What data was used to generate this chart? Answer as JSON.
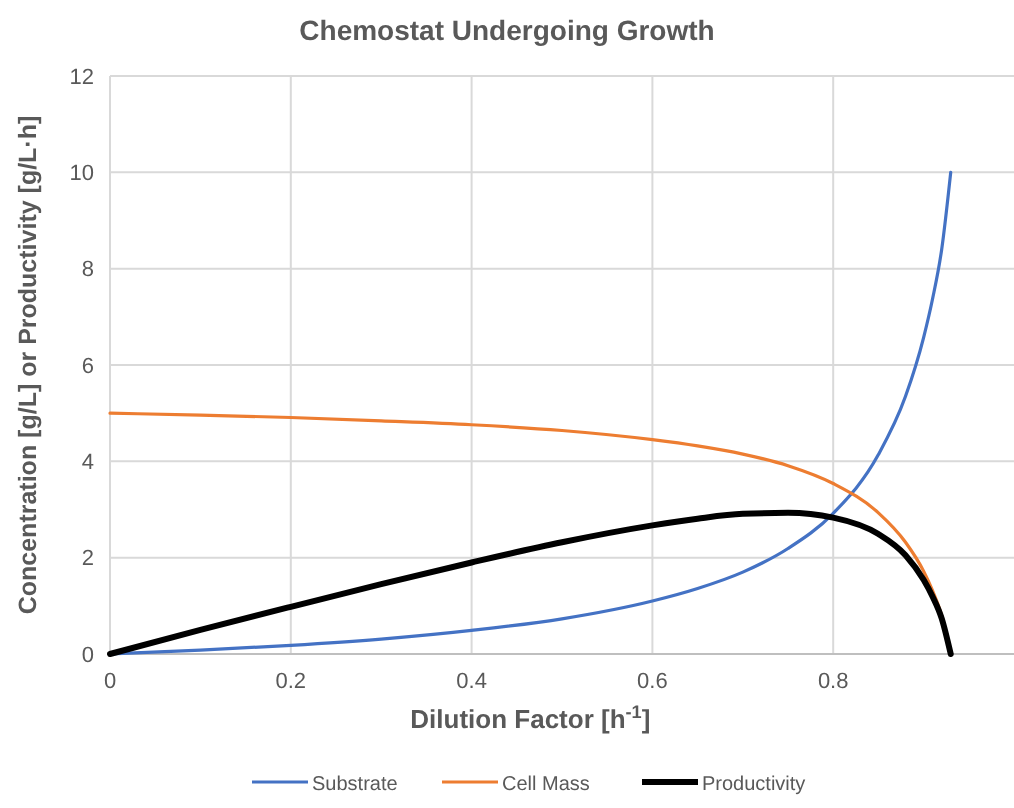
{
  "chart_data": {
    "type": "line",
    "title": "Chemostat Undergoing Growth",
    "xlabel": "Dilution Factor [h$^{-1}$]",
    "ylabel": "Concentration [g/L] or Productivity [g/L·h]",
    "x": [
      0,
      0.1,
      0.2,
      0.3,
      0.4,
      0.5,
      0.6,
      0.65,
      0.7,
      0.75,
      0.8,
      0.85,
      0.88,
      0.9,
      0.91,
      0.92,
      0.93
    ],
    "series": [
      {
        "name": "Substrate",
        "color": "#4472c4",
        "values": [
          0,
          0.08,
          0.18,
          0.31,
          0.49,
          0.73,
          1.1,
          1.36,
          1.7,
          2.19,
          2.92,
          4.14,
          5.35,
          6.57,
          7.38,
          8.4,
          10
        ]
      },
      {
        "name": "Cell Mass",
        "color": "#ed7d31",
        "values": [
          5,
          4.96,
          4.91,
          4.84,
          4.76,
          4.64,
          4.45,
          4.32,
          4.15,
          3.91,
          3.54,
          2.93,
          2.32,
          1.72,
          1.31,
          0.8,
          0
        ]
      },
      {
        "name": "Productivity",
        "color": "#000000",
        "values": [
          0,
          0.5,
          0.98,
          1.45,
          1.9,
          2.32,
          2.67,
          2.81,
          2.91,
          2.93,
          2.83,
          2.49,
          2.05,
          1.54,
          1.19,
          0.74,
          0
        ]
      }
    ],
    "xlim": [
      0,
      1
    ],
    "xticks": [
      0,
      0.2,
      0.4,
      0.6,
      0.8
    ],
    "ylim": [
      0,
      12
    ],
    "yticks": [
      0,
      2,
      4,
      6,
      8,
      10,
      12
    ],
    "grid": true,
    "legend": "bottom",
    "marker": "none",
    "line_style": "solid"
  }
}
